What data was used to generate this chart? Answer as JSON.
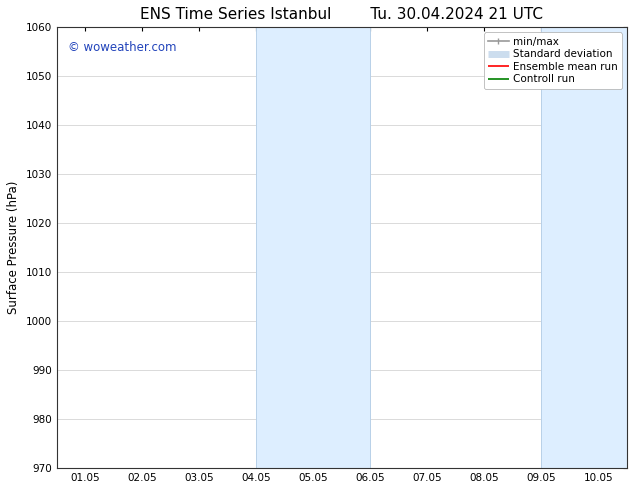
{
  "title_left": "ENS Time Series Istanbul",
  "title_right": "Tu. 30.04.2024 21 UTC",
  "ylabel": "Surface Pressure (hPa)",
  "ylim": [
    970,
    1060
  ],
  "yticks": [
    970,
    980,
    990,
    1000,
    1010,
    1020,
    1030,
    1040,
    1050,
    1060
  ],
  "xtick_labels": [
    "01.05",
    "02.05",
    "03.05",
    "04.05",
    "05.05",
    "06.05",
    "07.05",
    "08.05",
    "09.05",
    "10.05"
  ],
  "xtick_positions": [
    0,
    1,
    2,
    3,
    4,
    5,
    6,
    7,
    8,
    9
  ],
  "shaded_bands": [
    {
      "xmin": 3,
      "xmax": 5
    },
    {
      "xmin": 8,
      "xmax": 9.5
    }
  ],
  "band_color": "#ddeeff",
  "band_edge_color": "#b8d0e8",
  "watermark_text": "© woweather.com",
  "watermark_color": "#2244bb",
  "legend_items": [
    {
      "label": "min/max",
      "color": "#999999",
      "lw": 1.2,
      "style": "line_with_caps"
    },
    {
      "label": "Standard deviation",
      "color": "#ccddee",
      "lw": 5,
      "style": "line"
    },
    {
      "label": "Ensemble mean run",
      "color": "red",
      "lw": 1.2,
      "style": "line"
    },
    {
      "label": "Controll run",
      "color": "green",
      "lw": 1.2,
      "style": "line"
    }
  ],
  "background_color": "#ffffff",
  "grid_color": "#cccccc",
  "title_fontsize": 11,
  "tick_label_fontsize": 7.5,
  "ylabel_fontsize": 8.5,
  "watermark_fontsize": 8.5,
  "legend_fontsize": 7.5
}
